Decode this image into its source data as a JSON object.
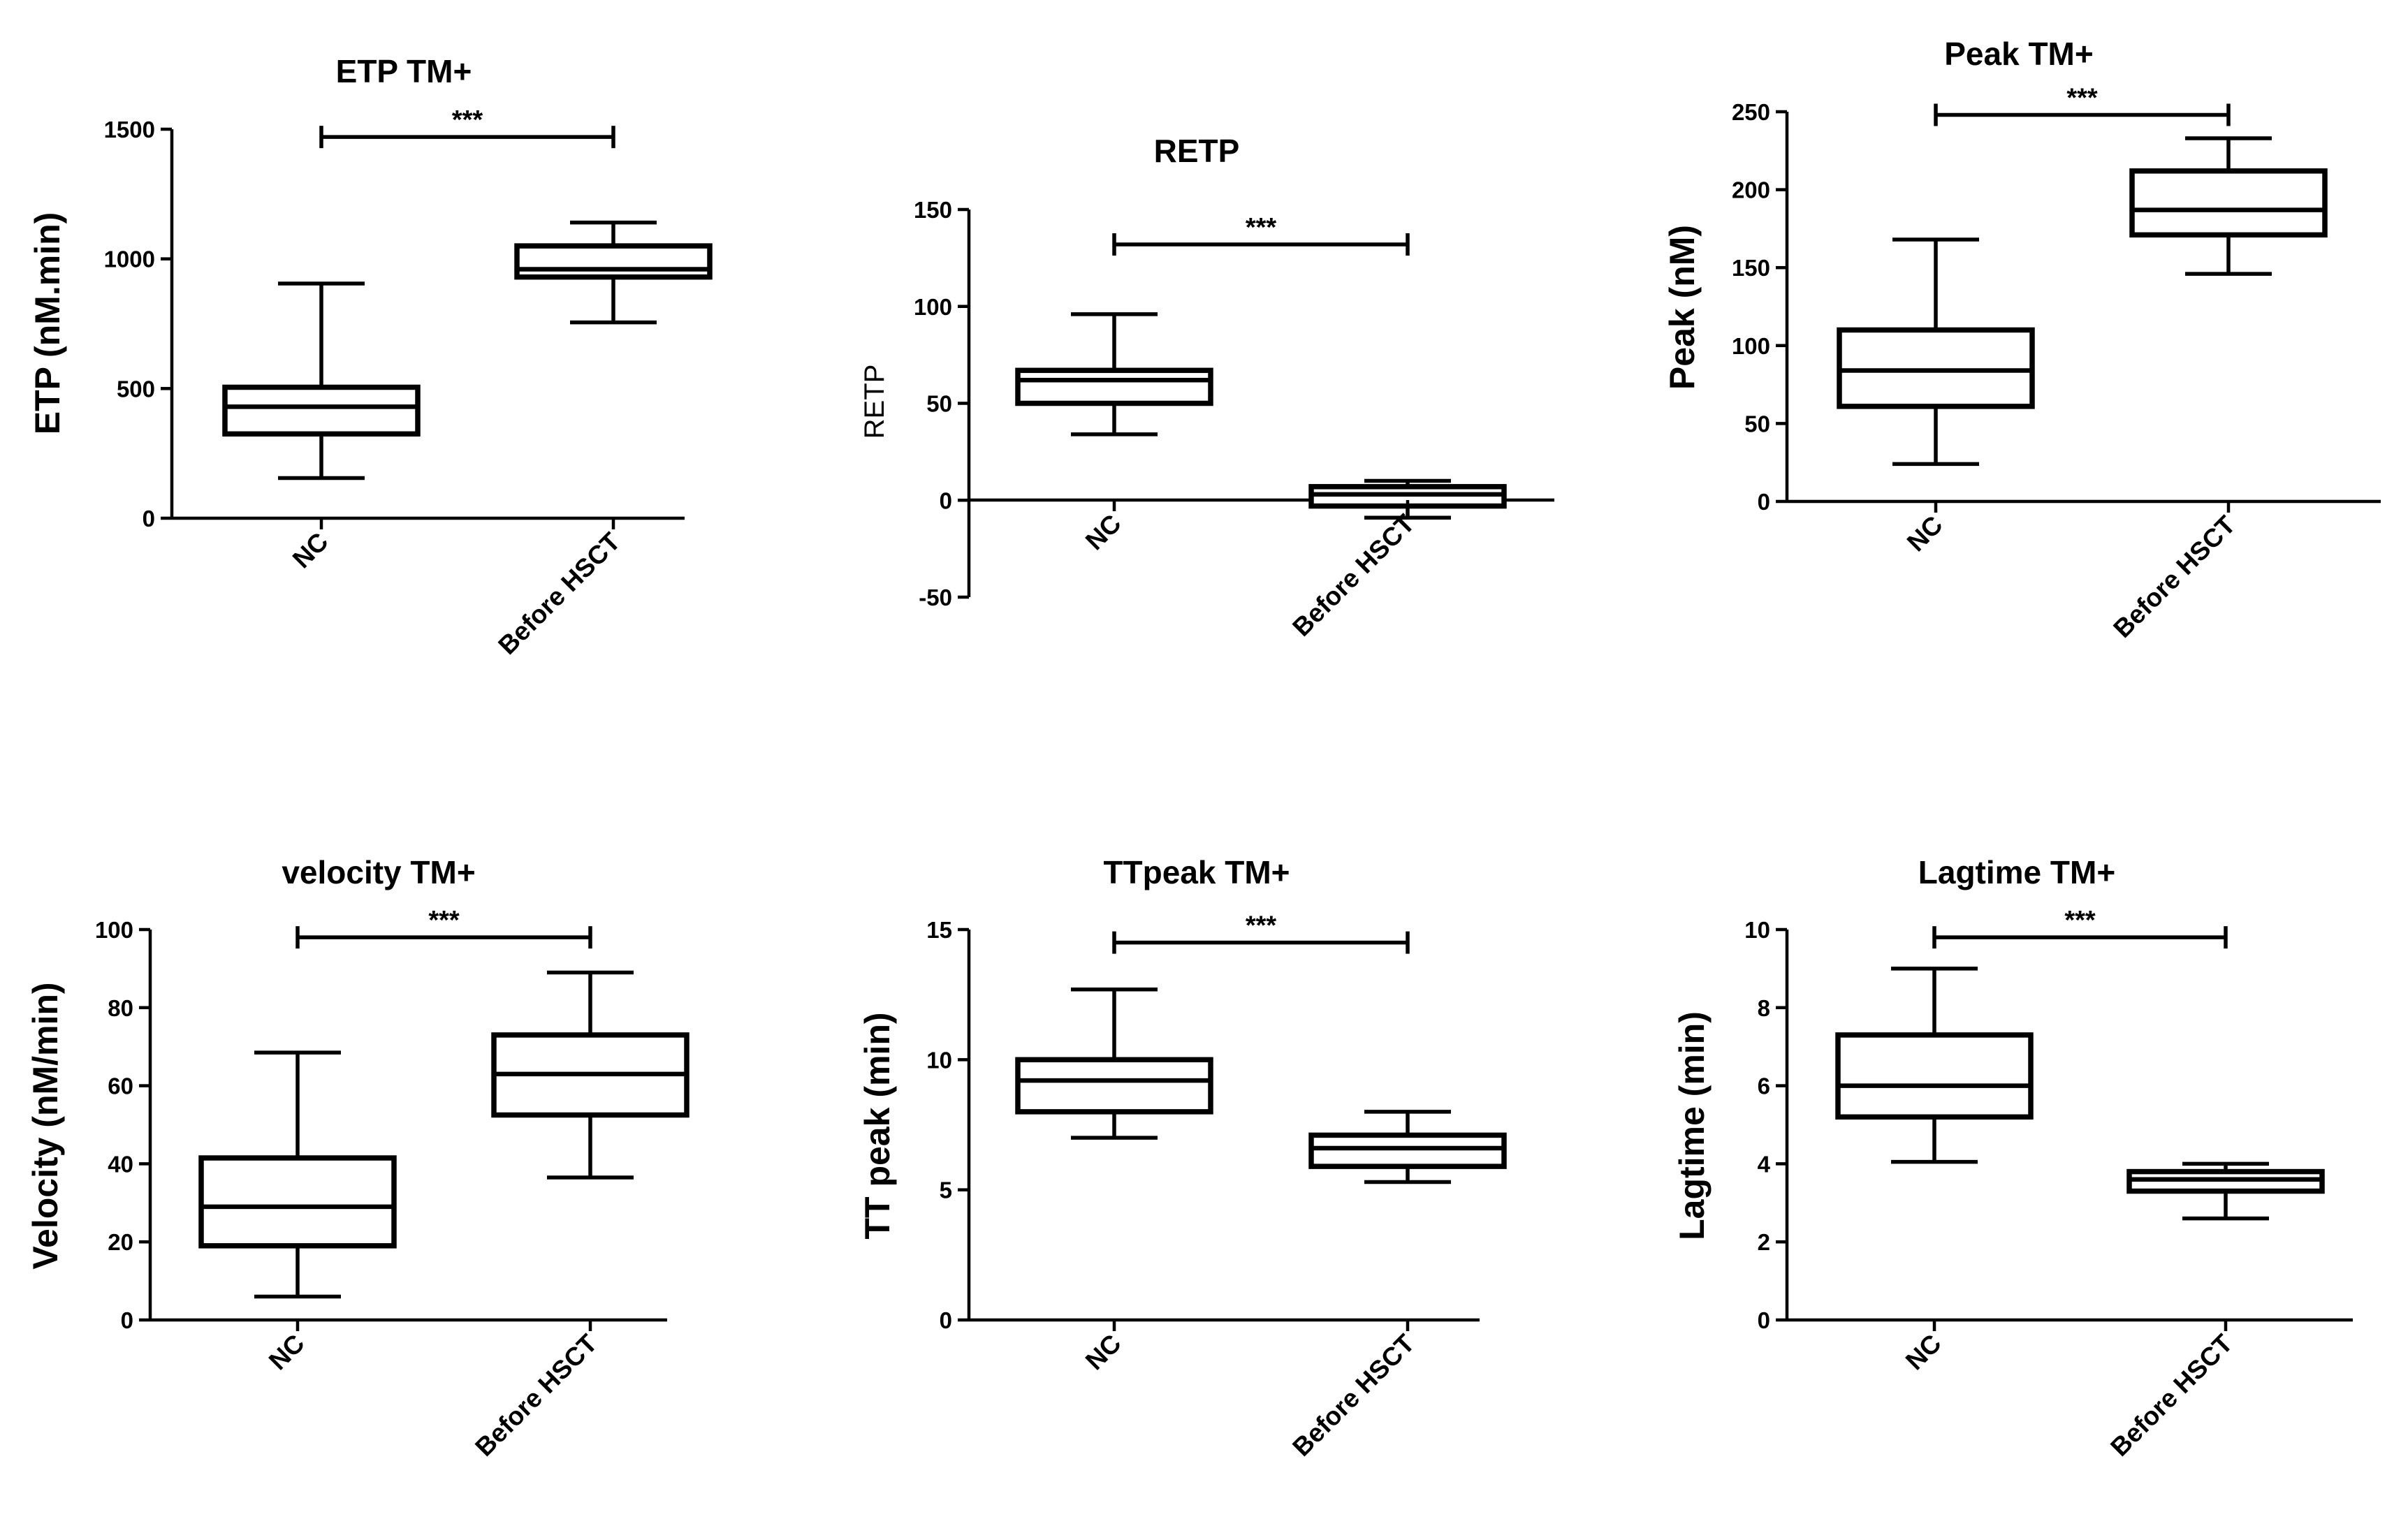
{
  "chart_data": [
    {
      "type": "box",
      "title": "ETP TM+",
      "ylabel": "ETP (nM.min)",
      "categories": [
        "NC",
        "Before HSCT"
      ],
      "ylim": [
        0,
        1500
      ],
      "yticks": [
        0,
        500,
        1000,
        1500
      ],
      "boxes": [
        {
          "min": 155,
          "q1": 325,
          "median": 430,
          "q3": 505,
          "max": 905
        },
        {
          "min": 755,
          "q1": 930,
          "median": 960,
          "q3": 1050,
          "max": 1140
        }
      ],
      "significance": {
        "label": "***",
        "y": 1470
      }
    },
    {
      "type": "box",
      "title": "RETP",
      "ylabel": "RETP",
      "categories": [
        "NC",
        "Before HSCT"
      ],
      "ylim": [
        -50,
        150
      ],
      "yticks": [
        -50,
        0,
        50,
        100,
        150
      ],
      "zero_line": true,
      "boxes": [
        {
          "min": 34,
          "q1": 50,
          "median": 62,
          "q3": 67,
          "max": 96
        },
        {
          "min": -9,
          "q1": -3,
          "median": 3,
          "q3": 7,
          "max": 10
        }
      ],
      "significance": {
        "label": "***",
        "y": 132
      }
    },
    {
      "type": "box",
      "title": "Peak TM+",
      "ylabel": "Peak (nM)",
      "categories": [
        "NC",
        "Before HSCT"
      ],
      "ylim": [
        0,
        250
      ],
      "yticks": [
        0,
        50,
        100,
        150,
        200,
        250
      ],
      "boxes": [
        {
          "min": 24,
          "q1": 61,
          "median": 84,
          "q3": 110,
          "max": 168
        },
        {
          "min": 146,
          "q1": 171,
          "median": 187,
          "q3": 212,
          "max": 233
        }
      ],
      "significance": {
        "label": "***",
        "y": 248
      }
    },
    {
      "type": "box",
      "title": "velocity TM+",
      "ylabel": "Velocity (nM/min)",
      "categories": [
        "NC",
        "Before HSCT"
      ],
      "ylim": [
        0,
        100
      ],
      "yticks": [
        0,
        20,
        40,
        60,
        80,
        100
      ],
      "boxes": [
        {
          "min": 6,
          "q1": 19,
          "median": 29,
          "q3": 41.5,
          "max": 68.5
        },
        {
          "min": 36.5,
          "q1": 52.5,
          "median": 63,
          "q3": 73,
          "max": 89
        }
      ],
      "significance": {
        "label": "***",
        "y": 98
      }
    },
    {
      "type": "box",
      "title": "TTpeak TM+",
      "ylabel": "TT  peak  (min)",
      "categories": [
        "NC",
        "Before HSCT"
      ],
      "ylim": [
        0,
        15
      ],
      "yticks": [
        0,
        5,
        10,
        15
      ],
      "boxes": [
        {
          "min": 7,
          "q1": 8,
          "median": 9.2,
          "q3": 10,
          "max": 12.7
        },
        {
          "min": 5.3,
          "q1": 5.9,
          "median": 6.6,
          "q3": 7.1,
          "max": 8
        }
      ],
      "significance": {
        "label": "***",
        "y": 14.5
      }
    },
    {
      "type": "box",
      "title": "Lagtime TM+",
      "ylabel": "Lagtime (min)",
      "categories": [
        "NC",
        "Before HSCT"
      ],
      "ylim": [
        0,
        10
      ],
      "yticks": [
        0,
        2,
        4,
        6,
        8,
        10
      ],
      "boxes": [
        {
          "min": 4.05,
          "q1": 5.2,
          "median": 6,
          "q3": 7.3,
          "max": 9
        },
        {
          "min": 2.6,
          "q1": 3.3,
          "median": 3.6,
          "q3": 3.8,
          "max": 4
        }
      ],
      "significance": {
        "label": "***",
        "y": 9.8
      }
    }
  ]
}
